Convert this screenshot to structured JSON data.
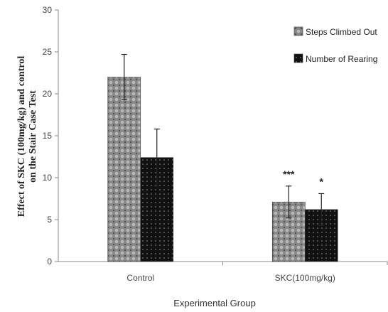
{
  "chart_data": {
    "type": "bar",
    "categories": [
      "Control",
      "SKC(100mg/kg)"
    ],
    "series": [
      {
        "name": "Steps Climbed Out",
        "values": [
          22,
          7.1
        ],
        "errors": [
          2.7,
          1.9
        ],
        "color": "#7f7f7f",
        "pattern": "crosshatch"
      },
      {
        "name": "Number of Rearing",
        "values": [
          12.4,
          6.2
        ],
        "errors": [
          3.4,
          1.9
        ],
        "color": "#111111",
        "pattern": "dotted"
      }
    ],
    "annotations": [
      {
        "category_index": 1,
        "series_index": 0,
        "text": "***"
      },
      {
        "category_index": 1,
        "series_index": 1,
        "text": "*"
      }
    ],
    "ylim": [
      0,
      30
    ],
    "yticks": [
      0,
      5,
      10,
      15,
      20,
      25,
      30
    ],
    "xlabel": "Experimental Group",
    "ylabel_lines": [
      "Effect of SKC (100mg/kg) and control",
      "on the Stair Case Test"
    ],
    "legend_position": "top-right",
    "grid": false
  }
}
